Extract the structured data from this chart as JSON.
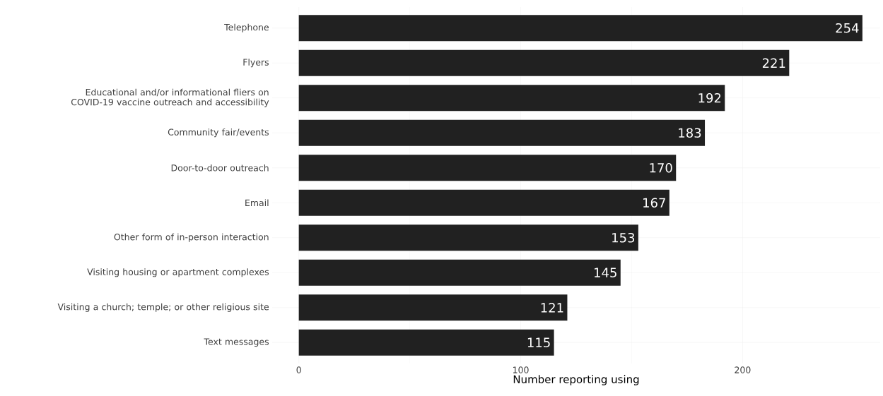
{
  "chart_data": {
    "type": "bar",
    "orientation": "horizontal",
    "xlabel": "Number reporting using",
    "categories": [
      "Telephone",
      "Flyers",
      "Educational and/or informational fliers on COVID-19 vaccine outreach and accessibility",
      "Community fair/events",
      "Door-to-door outreach",
      "Email",
      "Other form of in-person interaction",
      "Visiting housing or apartment complexes",
      "Visiting a church; temple; or other religious site",
      "Text messages"
    ],
    "values": [
      254,
      221,
      192,
      183,
      170,
      167,
      153,
      145,
      121,
      115
    ],
    "color": "#212121",
    "xlim": [
      -12,
      262
    ],
    "xticks": [
      0,
      100,
      200
    ],
    "grid": true,
    "data_labels": true
  }
}
